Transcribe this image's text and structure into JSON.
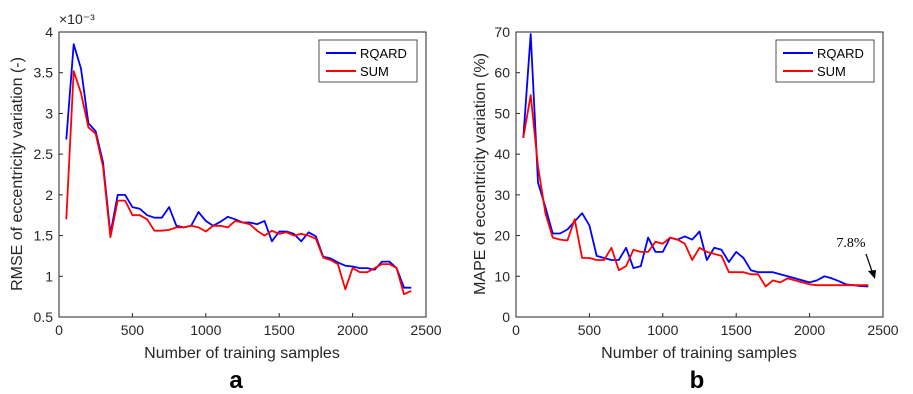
{
  "chart_data": [
    {
      "type": "line",
      "panel_label": "a",
      "xlabel": "Number of training samples",
      "ylabel": "RMSE of eccentricity variation (-)",
      "exponent_label": "×10⁻³",
      "xlim": [
        0,
        2500
      ],
      "ylim": [
        0.5,
        4
      ],
      "xticks": [
        0,
        500,
        1000,
        1500,
        2000,
        2500
      ],
      "yticks": [
        0.5,
        1,
        1.5,
        2,
        2.5,
        3,
        3.5,
        4
      ],
      "xtick_labels": [
        "0",
        "500",
        "1000",
        "1500",
        "2000",
        "2500"
      ],
      "ytick_labels": [
        "0.5",
        "1",
        "1.5",
        "2",
        "2.5",
        "3",
        "3.5",
        "4"
      ],
      "legend_position": "top-right",
      "grid": false,
      "x": [
        50,
        100,
        150,
        200,
        250,
        300,
        350,
        400,
        450,
        500,
        550,
        600,
        650,
        700,
        750,
        800,
        850,
        900,
        950,
        1000,
        1050,
        1100,
        1150,
        1200,
        1250,
        1300,
        1350,
        1400,
        1450,
        1500,
        1550,
        1600,
        1650,
        1700,
        1750,
        1800,
        1850,
        1900,
        1950,
        2000,
        2050,
        2100,
        2150,
        2200,
        2250,
        2300,
        2350,
        2400
      ],
      "series": [
        {
          "name": "RQARD",
          "color": "#0000ff",
          "values": [
            2.68,
            3.85,
            3.55,
            2.88,
            2.78,
            2.4,
            1.52,
            2.0,
            2.0,
            1.85,
            1.83,
            1.75,
            1.72,
            1.72,
            1.85,
            1.62,
            1.6,
            1.62,
            1.79,
            1.68,
            1.62,
            1.67,
            1.73,
            1.7,
            1.66,
            1.66,
            1.64,
            1.68,
            1.43,
            1.55,
            1.55,
            1.52,
            1.43,
            1.54,
            1.49,
            1.24,
            1.22,
            1.17,
            1.13,
            1.12,
            1.1,
            1.1,
            1.08,
            1.18,
            1.18,
            1.1,
            0.86,
            0.86
          ]
        },
        {
          "name": "SUM",
          "color": "#ff0000",
          "values": [
            1.7,
            3.52,
            3.25,
            2.83,
            2.75,
            2.35,
            1.48,
            1.93,
            1.93,
            1.75,
            1.75,
            1.7,
            1.56,
            1.56,
            1.57,
            1.6,
            1.6,
            1.62,
            1.6,
            1.55,
            1.62,
            1.62,
            1.6,
            1.68,
            1.66,
            1.64,
            1.56,
            1.5,
            1.56,
            1.52,
            1.54,
            1.5,
            1.52,
            1.5,
            1.46,
            1.23,
            1.2,
            1.15,
            0.84,
            1.1,
            1.05,
            1.05,
            1.1,
            1.15,
            1.15,
            1.1,
            0.78,
            0.82
          ]
        }
      ]
    },
    {
      "type": "line",
      "panel_label": "b",
      "xlabel": "Number of training samples",
      "ylabel": "MAPE of eccentricity variation (%)",
      "xlim": [
        0,
        2500
      ],
      "ylim": [
        0,
        70
      ],
      "xticks": [
        0,
        500,
        1000,
        1500,
        2000,
        2500
      ],
      "yticks": [
        0,
        10,
        20,
        30,
        40,
        50,
        60,
        70
      ],
      "xtick_labels": [
        "0",
        "500",
        "1000",
        "1500",
        "2000",
        "2500"
      ],
      "ytick_labels": [
        "0",
        "10",
        "20",
        "30",
        "40",
        "50",
        "60",
        "70"
      ],
      "legend_position": "top-right",
      "grid": false,
      "annotation": {
        "text": "7.8%",
        "x": 2400,
        "y": 7.8
      },
      "x": [
        50,
        100,
        150,
        200,
        250,
        300,
        350,
        400,
        450,
        500,
        550,
        600,
        650,
        700,
        750,
        800,
        850,
        900,
        950,
        1000,
        1050,
        1100,
        1150,
        1200,
        1250,
        1300,
        1350,
        1400,
        1450,
        1500,
        1550,
        1600,
        1650,
        1700,
        1750,
        1800,
        1850,
        1900,
        1950,
        2000,
        2050,
        2100,
        2150,
        2200,
        2250,
        2300,
        2350,
        2400
      ],
      "series": [
        {
          "name": "RQARD",
          "color": "#0000ff",
          "values": [
            44,
            69.5,
            33,
            27,
            20.5,
            20.5,
            21.5,
            23.5,
            25.5,
            22.5,
            15,
            14.5,
            14,
            14,
            17,
            12,
            12.5,
            19.5,
            16,
            16,
            19.5,
            19,
            19.8,
            19,
            21,
            14,
            17,
            16.5,
            13.5,
            16,
            14.5,
            11.5,
            11,
            11,
            11,
            10.5,
            10,
            9.5,
            9,
            8.5,
            9,
            10,
            9.5,
            8.8,
            8,
            7.8,
            7.6,
            7.5
          ]
        },
        {
          "name": "SUM",
          "color": "#ff0000",
          "values": [
            44,
            54.5,
            37,
            25.5,
            19.5,
            19,
            18.8,
            24,
            14.5,
            14.5,
            14,
            14,
            17,
            11.5,
            12.5,
            16.5,
            16,
            16,
            18.5,
            18,
            19.5,
            19,
            18,
            14,
            17,
            16,
            15.5,
            15,
            11,
            11,
            11,
            10.5,
            10.5,
            7.5,
            9,
            8.5,
            9.5,
            9,
            8.5,
            8,
            7.8,
            7.8,
            7.8,
            7.8,
            7.8,
            7.8,
            7.8,
            7.8
          ]
        }
      ]
    }
  ]
}
